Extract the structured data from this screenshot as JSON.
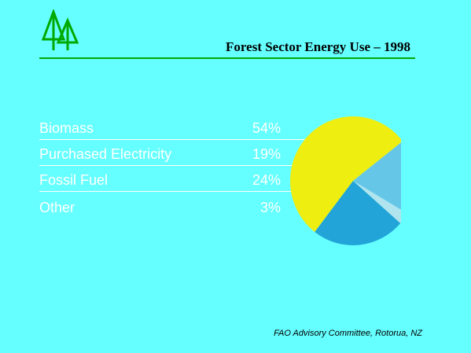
{
  "title": "Forest Sector Energy Use – 1998",
  "footer": "FAO Advisory Committee, Rotorua, NZ",
  "logo_icon": "trees-icon",
  "colors": {
    "background": "#66ffff",
    "accent": "#00aa00",
    "text": "#ffffff"
  },
  "chart_data": {
    "type": "pie",
    "title": "Forest Sector Energy Use – 1998",
    "categories": [
      "Biomass",
      "Purchased Electricity",
      "Fossil Fuel",
      "Other"
    ],
    "values": [
      54,
      19,
      24,
      3
    ],
    "labels": [
      "54%",
      "19%",
      "24%",
      "3%"
    ],
    "colors": [
      "#eeee11",
      "#66c6e8",
      "#22a4d8",
      "#b0e4ee"
    ]
  }
}
